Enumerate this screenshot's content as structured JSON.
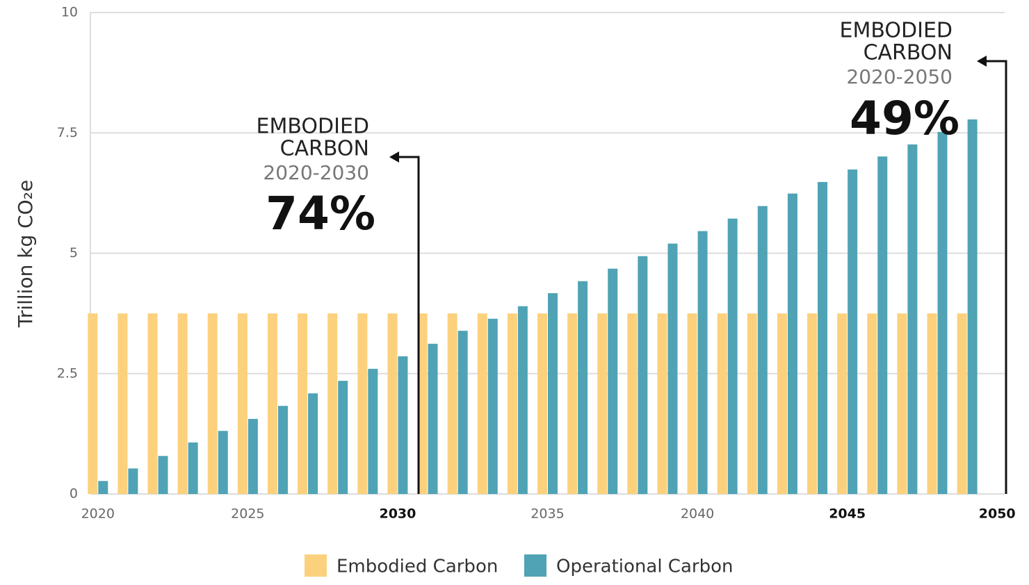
{
  "chart_data": {
    "type": "bar",
    "ylabel": "Trillion kg CO₂e",
    "x": [
      2020,
      2021,
      2022,
      2023,
      2024,
      2025,
      2026,
      2027,
      2028,
      2029,
      2030,
      2031,
      2032,
      2033,
      2034,
      2035,
      2036,
      2037,
      2038,
      2039,
      2040,
      2041,
      2042,
      2043,
      2044,
      2045,
      2046,
      2047,
      2048,
      2049
    ],
    "series": [
      {
        "name": "Embodied Carbon",
        "color": "#fcd17d",
        "values": [
          3.75,
          3.75,
          3.75,
          3.75,
          3.75,
          3.75,
          3.75,
          3.75,
          3.75,
          3.75,
          3.75,
          3.75,
          3.75,
          3.75,
          3.75,
          3.75,
          3.75,
          3.75,
          3.75,
          3.75,
          3.75,
          3.75,
          3.75,
          3.75,
          3.75,
          3.75,
          3.75,
          3.75,
          3.75,
          3.75
        ]
      },
      {
        "name": "Operational Carbon",
        "color": "#4fa3b5",
        "values": [
          0.27,
          0.53,
          0.79,
          1.07,
          1.31,
          1.56,
          1.83,
          2.09,
          2.35,
          2.6,
          2.86,
          3.12,
          3.39,
          3.64,
          3.9,
          4.17,
          4.42,
          4.68,
          4.94,
          5.2,
          5.46,
          5.72,
          5.98,
          6.24,
          6.48,
          6.74,
          7.01,
          7.26,
          7.52,
          7.78
        ]
      }
    ],
    "xlim": [
      2019.75,
      2050.25
    ],
    "xticks": [
      2020,
      2025,
      2030,
      2035,
      2040,
      2045,
      2050
    ],
    "xticks_bold": [
      false,
      false,
      true,
      false,
      false,
      true,
      true
    ],
    "ylim": [
      0,
      10
    ],
    "yticks": [
      0,
      2.5,
      5,
      7.5,
      10
    ],
    "grid": true,
    "annotations": [
      {
        "lines": [
          "EMBODIED",
          "CARBON"
        ],
        "period": "2020-2030",
        "share": "74%"
      },
      {
        "lines": [
          "EMBODIED",
          "CARBON"
        ],
        "period": "2020-2050",
        "share": "49%"
      }
    ]
  }
}
